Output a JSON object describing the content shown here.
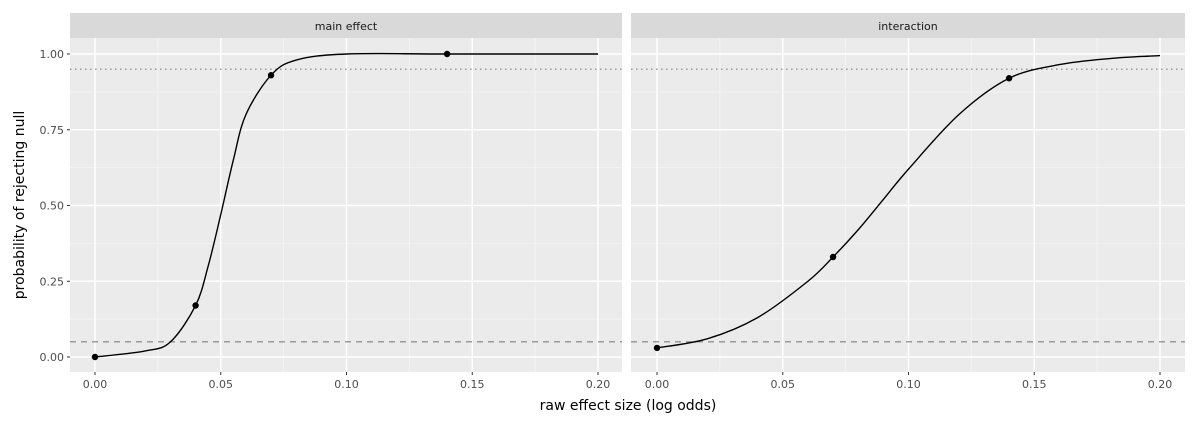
{
  "chart_data": {
    "type": "line",
    "title": "",
    "xlabel": "raw effect size (log odds)",
    "ylabel": "probability of rejecting null",
    "ylim": [
      -0.05,
      1.05
    ],
    "xlim": [
      -0.01,
      0.21
    ],
    "y_ticks": [
      "0.00",
      "0.25",
      "0.50",
      "0.75",
      "1.00"
    ],
    "x_ticks": [
      "0.00",
      "0.05",
      "0.10",
      "0.15",
      "0.20"
    ],
    "reference_lines": [
      {
        "y": 0.95,
        "style": "dotted"
      },
      {
        "y": 0.05,
        "style": "dashed"
      }
    ],
    "grid": true,
    "legend": "none",
    "panels": [
      {
        "label": "main effect",
        "points": [
          {
            "x": 0.0,
            "y": 0.0
          },
          {
            "x": 0.04,
            "y": 0.17
          },
          {
            "x": 0.07,
            "y": 0.93
          },
          {
            "x": 0.14,
            "y": 1.0
          }
        ],
        "curve": {
          "x": [
            0,
            0.02,
            0.03,
            0.04,
            0.045,
            0.05,
            0.055,
            0.06,
            0.07,
            0.08,
            0.1,
            0.14,
            0.2
          ],
          "y": [
            0.0,
            0.02,
            0.05,
            0.17,
            0.3,
            0.47,
            0.65,
            0.8,
            0.93,
            0.98,
            1.0,
            1.0,
            1.0
          ]
        }
      },
      {
        "label": "interaction",
        "points": [
          {
            "x": 0.0,
            "y": 0.03
          },
          {
            "x": 0.07,
            "y": 0.33
          },
          {
            "x": 0.14,
            "y": 0.92
          }
        ],
        "curve": {
          "x": [
            0,
            0.02,
            0.04,
            0.06,
            0.07,
            0.08,
            0.09,
            0.1,
            0.12,
            0.14,
            0.16,
            0.18,
            0.2
          ],
          "y": [
            0.03,
            0.06,
            0.13,
            0.25,
            0.33,
            0.42,
            0.52,
            0.62,
            0.8,
            0.92,
            0.965,
            0.985,
            0.995
          ]
        }
      }
    ]
  }
}
